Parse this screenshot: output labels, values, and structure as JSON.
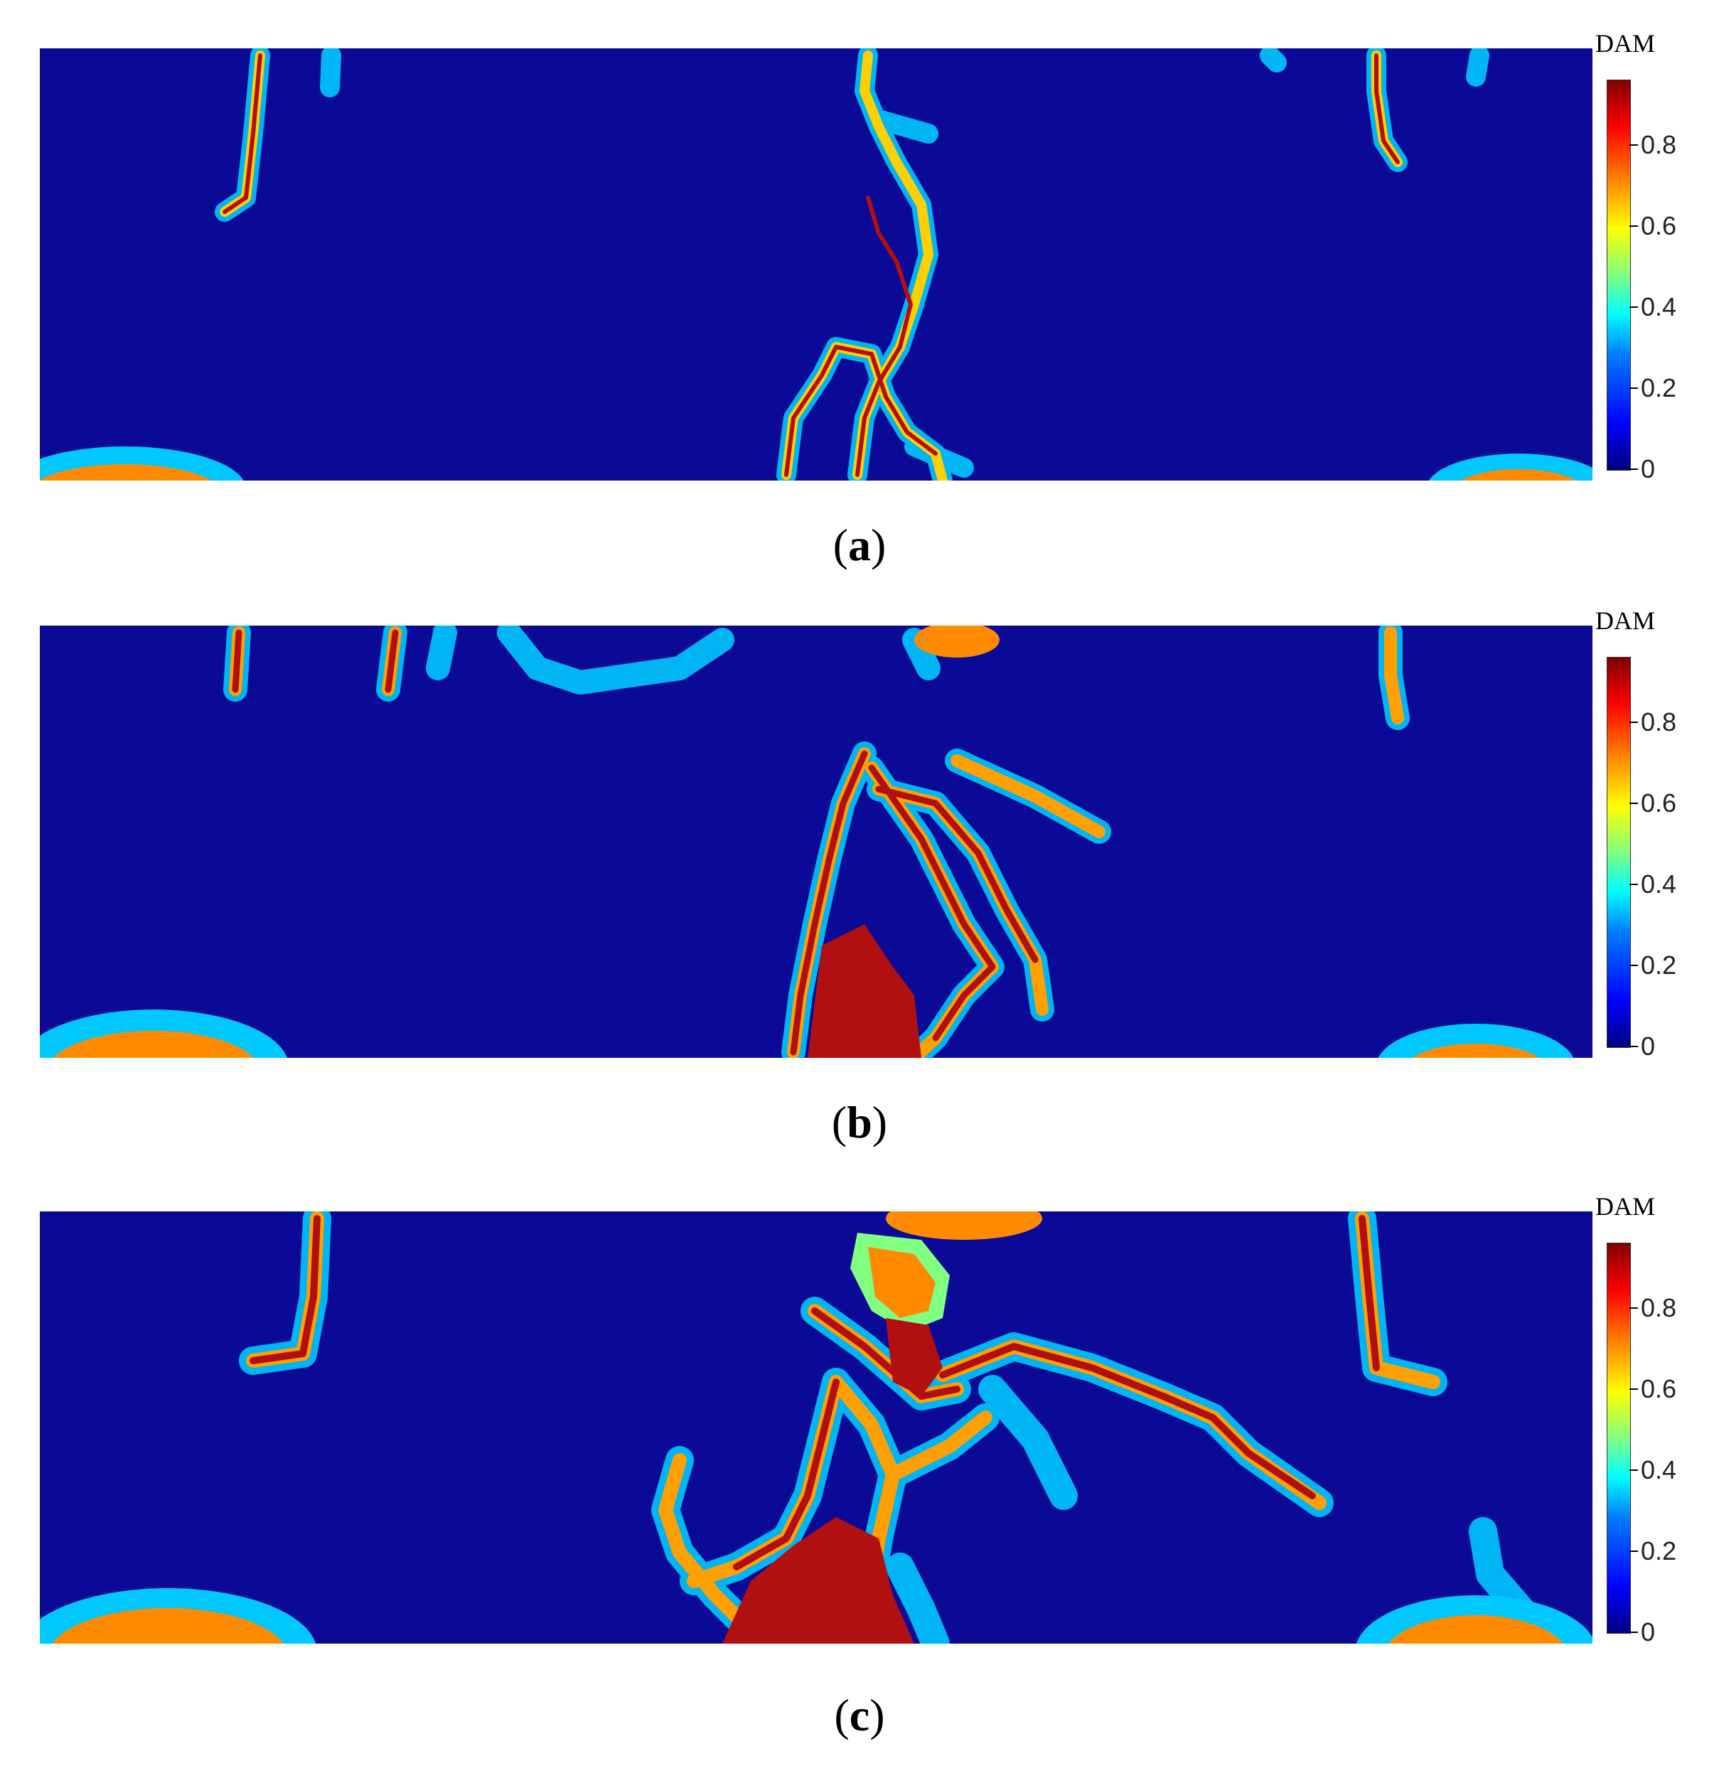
{
  "colorbar": {
    "title": "DAM",
    "ticks": [
      "0.8",
      "0.6",
      "0.4",
      "0.2",
      "0"
    ],
    "tick_values": [
      0.8,
      0.6,
      0.4,
      0.2,
      0
    ],
    "range": [
      0,
      1
    ],
    "colors": {
      "low": "#00007f",
      "mid": "#00ffff",
      "high": "#7f0000"
    }
  },
  "panels": [
    {
      "id": "a",
      "label": "a"
    },
    {
      "id": "b",
      "label": "b"
    },
    {
      "id": "c",
      "label": "c"
    }
  ],
  "colors": {
    "background": "#0a0a96",
    "crack_core": "#b01010",
    "crack_mid": "#ff3c00",
    "crack_halo": "#00c8ff"
  }
}
